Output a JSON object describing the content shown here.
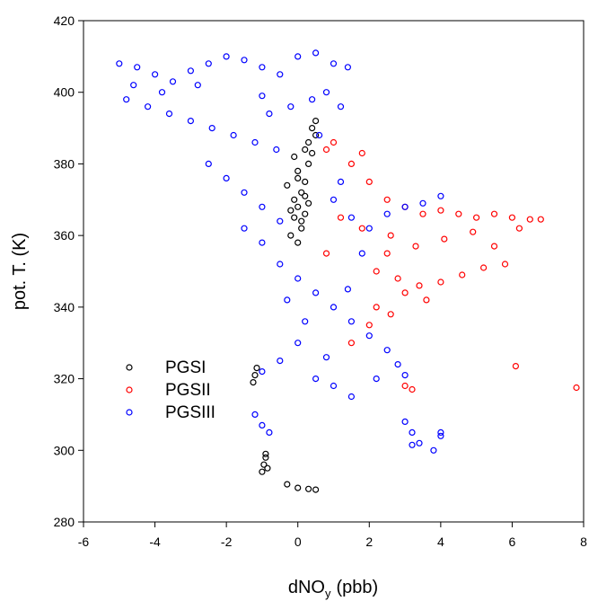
{
  "chart_data": {
    "type": "scatter",
    "xlabel": "dNO",
    "xlabel_subscript": "y",
    "xlabel_unit": "(pbb)",
    "ylabel": "pot. T.  (K)",
    "xlim": [
      -6,
      8
    ],
    "ylim": [
      280,
      420
    ],
    "xticks": [
      "-6",
      "-4",
      "-2",
      "0",
      "2",
      "4",
      "6",
      "8"
    ],
    "yticks": [
      "280",
      "300",
      "320",
      "340",
      "360",
      "380",
      "400",
      "420"
    ],
    "grid": false,
    "legend_position": "lower-left",
    "marker": "open-circle",
    "series": [
      {
        "name": "PGSI",
        "color": "#000000",
        "points": [
          [
            0.0,
            368
          ],
          [
            0.1,
            372
          ],
          [
            -0.1,
            365
          ],
          [
            0.2,
            375
          ],
          [
            -0.2,
            360
          ],
          [
            0.0,
            378
          ],
          [
            0.1,
            362
          ],
          [
            -0.1,
            370
          ],
          [
            0.3,
            380
          ],
          [
            0.2,
            366
          ],
          [
            0.0,
            358
          ],
          [
            -0.3,
            374
          ],
          [
            0.4,
            383
          ],
          [
            0.5,
            388
          ],
          [
            0.5,
            392
          ],
          [
            0.3,
            386
          ],
          [
            0.2,
            371
          ],
          [
            -0.2,
            367
          ],
          [
            0.1,
            364
          ],
          [
            0.0,
            376
          ],
          [
            -0.1,
            382
          ],
          [
            0.2,
            384
          ],
          [
            0.4,
            390
          ],
          [
            0.3,
            369
          ],
          [
            -0.9,
            298
          ],
          [
            -0.95,
            296
          ],
          [
            -0.85,
            295
          ],
          [
            -1.0,
            294
          ],
          [
            -0.9,
            299
          ],
          [
            -1.2,
            321
          ],
          [
            -1.25,
            319
          ],
          [
            -1.15,
            323
          ],
          [
            -0.3,
            290.5
          ],
          [
            0.0,
            289.5
          ],
          [
            0.3,
            289.2
          ],
          [
            0.5,
            289.0
          ]
        ]
      },
      {
        "name": "PGSII",
        "color": "#ff0000",
        "points": [
          [
            1.5,
            380
          ],
          [
            2.0,
            375
          ],
          [
            2.5,
            370
          ],
          [
            3.0,
            368
          ],
          [
            3.5,
            366
          ],
          [
            4.0,
            367
          ],
          [
            4.5,
            366
          ],
          [
            5.0,
            365
          ],
          [
            5.5,
            366
          ],
          [
            6.0,
            365
          ],
          [
            6.5,
            364.5
          ],
          [
            6.8,
            364.5
          ],
          [
            2.2,
            350
          ],
          [
            2.8,
            348
          ],
          [
            3.4,
            346
          ],
          [
            4.0,
            347
          ],
          [
            4.6,
            349
          ],
          [
            5.2,
            351
          ],
          [
            5.8,
            352
          ],
          [
            3.0,
            344
          ],
          [
            3.6,
            342
          ],
          [
            2.5,
            355
          ],
          [
            3.3,
            357
          ],
          [
            4.1,
            359
          ],
          [
            4.9,
            361
          ],
          [
            5.5,
            357
          ],
          [
            6.2,
            362
          ],
          [
            1.0,
            386
          ],
          [
            0.8,
            384
          ],
          [
            1.8,
            383
          ],
          [
            2.2,
            340
          ],
          [
            2.6,
            338
          ],
          [
            2.0,
            335
          ],
          [
            1.5,
            330
          ],
          [
            3.0,
            318
          ],
          [
            3.2,
            317
          ],
          [
            6.1,
            323.5
          ],
          [
            7.8,
            317.5
          ],
          [
            1.2,
            365
          ],
          [
            1.8,
            362
          ],
          [
            2.6,
            360
          ],
          [
            0.8,
            355
          ]
        ]
      },
      {
        "name": "PGSIII",
        "color": "#0000ff",
        "points": [
          [
            -5.0,
            408
          ],
          [
            -4.5,
            407
          ],
          [
            -4.0,
            405
          ],
          [
            -3.5,
            403
          ],
          [
            -3.0,
            406
          ],
          [
            -2.5,
            408
          ],
          [
            -2.0,
            410
          ],
          [
            -1.5,
            409
          ],
          [
            -1.0,
            407
          ],
          [
            -0.5,
            405
          ],
          [
            0.0,
            410
          ],
          [
            0.5,
            411
          ],
          [
            1.0,
            408
          ],
          [
            1.4,
            407
          ],
          [
            -4.8,
            398
          ],
          [
            -4.2,
            396
          ],
          [
            -3.6,
            394
          ],
          [
            -3.0,
            392
          ],
          [
            -2.4,
            390
          ],
          [
            -1.8,
            388
          ],
          [
            -1.2,
            386
          ],
          [
            -0.6,
            384
          ],
          [
            -2.5,
            380
          ],
          [
            -2.0,
            376
          ],
          [
            -1.5,
            372
          ],
          [
            -1.0,
            368
          ],
          [
            -0.5,
            364
          ],
          [
            -1.5,
            362
          ],
          [
            -1.0,
            358
          ],
          [
            -0.5,
            352
          ],
          [
            0.0,
            348
          ],
          [
            0.5,
            344
          ],
          [
            1.0,
            340
          ],
          [
            1.5,
            336
          ],
          [
            2.0,
            332
          ],
          [
            2.5,
            328
          ],
          [
            0.0,
            330
          ],
          [
            -0.5,
            325
          ],
          [
            -1.0,
            322
          ],
          [
            0.5,
            320
          ],
          [
            1.0,
            318
          ],
          [
            1.5,
            315
          ],
          [
            -1.2,
            310
          ],
          [
            -1.0,
            307
          ],
          [
            -0.8,
            305
          ],
          [
            3.0,
            308
          ],
          [
            3.2,
            305
          ],
          [
            3.4,
            302
          ],
          [
            4.0,
            305
          ],
          [
            3.8,
            300
          ],
          [
            3.2,
            301.5
          ],
          [
            4.0,
            304
          ],
          [
            1.0,
            370
          ],
          [
            1.5,
            365
          ],
          [
            2.0,
            362
          ],
          [
            2.5,
            366
          ],
          [
            3.0,
            368
          ],
          [
            3.5,
            369
          ],
          [
            4.0,
            371
          ],
          [
            1.2,
            375
          ],
          [
            0.6,
            388
          ],
          [
            1.2,
            396
          ],
          [
            0.8,
            400
          ],
          [
            0.4,
            398
          ],
          [
            -0.2,
            396
          ],
          [
            -1.0,
            399
          ],
          [
            -3.8,
            400
          ],
          [
            -4.6,
            402
          ],
          [
            -2.8,
            402
          ],
          [
            -0.8,
            394
          ],
          [
            1.8,
            355
          ],
          [
            1.4,
            345
          ],
          [
            0.2,
            336
          ],
          [
            -0.3,
            342
          ],
          [
            0.8,
            326
          ],
          [
            2.8,
            324
          ],
          [
            2.2,
            320
          ],
          [
            3.0,
            321
          ]
        ]
      }
    ]
  }
}
